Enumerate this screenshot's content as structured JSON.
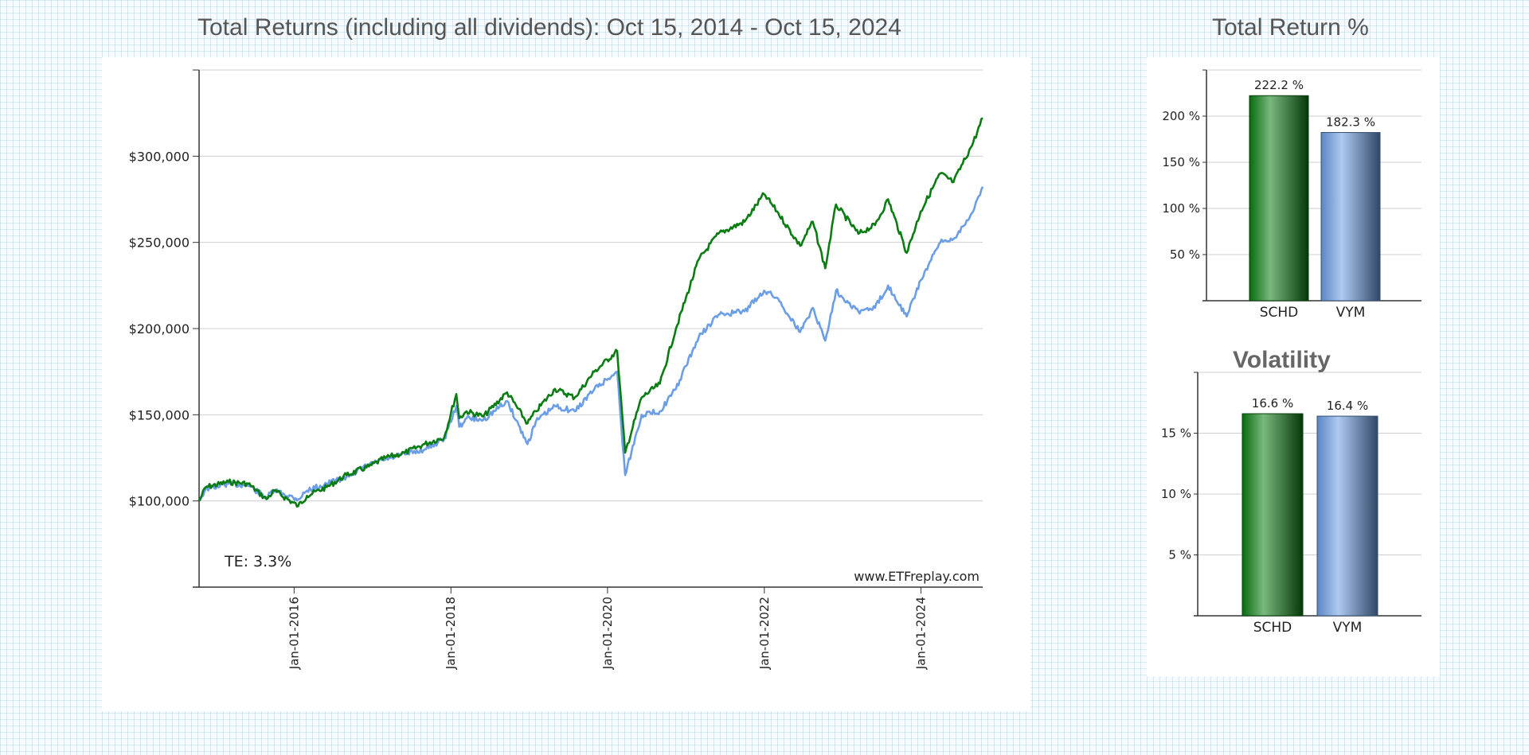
{
  "page": {
    "main_title": "Total Returns (including all dividends): Oct 15, 2014 - Oct 15, 2024",
    "return_title": "Total Return %",
    "volatility_title": "Volatility"
  },
  "colors": {
    "schd": "#0a7d12",
    "vym": "#6b9ee6",
    "grid": "#cfcfcf",
    "axis": "#333333"
  },
  "chart_data": [
    {
      "id": "growth",
      "type": "line",
      "title": "Total Returns (including all dividends): Oct 15, 2014 - Oct 15, 2024",
      "xlabel": "",
      "ylabel": "",
      "xlim": [
        "2014-10-15",
        "2024-10-15"
      ],
      "ylim": [
        50000,
        350000
      ],
      "y_ticks": [
        100000,
        150000,
        200000,
        250000,
        300000
      ],
      "y_tick_labels": [
        "$100,000",
        "$150,000",
        "$200,000",
        "$250,000",
        "$300,000"
      ],
      "x_ticks": [
        "2016-01-01",
        "2018-01-01",
        "2020-01-01",
        "2022-01-01",
        "2024-01-01"
      ],
      "x_tick_labels": [
        "Jan-01-2016",
        "Jan-01-2018",
        "Jan-01-2020",
        "Jan-01-2022",
        "Jan-01-2024"
      ],
      "grid": true,
      "annotation": "TE:  3.3%",
      "watermark": "www.ETFreplay.com",
      "series": [
        {
          "key": "schd",
          "color": "#0a7d12",
          "points": [
            [
              "2014-10-15",
              100000
            ],
            [
              "2014-11-15",
              108000
            ],
            [
              "2015-03-01",
              111000
            ],
            [
              "2015-06-01",
              110000
            ],
            [
              "2015-08-25",
              101000
            ],
            [
              "2015-10-01",
              106000
            ],
            [
              "2016-01-20",
              97000
            ],
            [
              "2016-03-01",
              103000
            ],
            [
              "2016-06-01",
              108000
            ],
            [
              "2016-09-01",
              115000
            ],
            [
              "2016-12-15",
              120000
            ],
            [
              "2017-03-01",
              125000
            ],
            [
              "2017-06-01",
              128000
            ],
            [
              "2017-09-01",
              133000
            ],
            [
              "2017-12-01",
              137000
            ],
            [
              "2018-01-26",
              162000
            ],
            [
              "2018-02-09",
              148000
            ],
            [
              "2018-03-15",
              152000
            ],
            [
              "2018-06-01",
              149000
            ],
            [
              "2018-09-20",
              163000
            ],
            [
              "2018-12-24",
              145000
            ],
            [
              "2019-02-01",
              152000
            ],
            [
              "2019-05-01",
              165000
            ],
            [
              "2019-08-01",
              160000
            ],
            [
              "2019-11-01",
              175000
            ],
            [
              "2020-02-15",
              187000
            ],
            [
              "2020-03-23",
              128000
            ],
            [
              "2020-06-08",
              160000
            ],
            [
              "2020-09-01",
              168000
            ],
            [
              "2020-11-15",
              200000
            ],
            [
              "2021-03-01",
              240000
            ],
            [
              "2021-06-01",
              255000
            ],
            [
              "2021-10-01",
              262000
            ],
            [
              "2021-12-31",
              278000
            ],
            [
              "2022-03-01",
              268000
            ],
            [
              "2022-06-17",
              248000
            ],
            [
              "2022-08-15",
              262000
            ],
            [
              "2022-10-12",
              235000
            ],
            [
              "2022-12-01",
              272000
            ],
            [
              "2023-03-15",
              255000
            ],
            [
              "2023-06-01",
              260000
            ],
            [
              "2023-08-01",
              275000
            ],
            [
              "2023-10-27",
              244000
            ],
            [
              "2023-12-31",
              268000
            ],
            [
              "2024-03-31",
              290000
            ],
            [
              "2024-06-01",
              285000
            ],
            [
              "2024-09-01",
              308000
            ],
            [
              "2024-10-15",
              322200
            ]
          ]
        },
        {
          "key": "vym",
          "color": "#6b9ee6",
          "points": [
            [
              "2014-10-15",
              100000
            ],
            [
              "2014-11-15",
              107000
            ],
            [
              "2015-03-01",
              110000
            ],
            [
              "2015-06-01",
              109000
            ],
            [
              "2015-08-25",
              102000
            ],
            [
              "2015-10-01",
              106000
            ],
            [
              "2016-01-20",
              101000
            ],
            [
              "2016-03-01",
              106000
            ],
            [
              "2016-06-01",
              110000
            ],
            [
              "2016-09-01",
              114000
            ],
            [
              "2016-12-15",
              121000
            ],
            [
              "2017-03-01",
              124000
            ],
            [
              "2017-06-01",
              127000
            ],
            [
              "2017-09-01",
              130000
            ],
            [
              "2017-12-01",
              136000
            ],
            [
              "2018-01-26",
              155000
            ],
            [
              "2018-02-09",
              143000
            ],
            [
              "2018-03-15",
              148000
            ],
            [
              "2018-06-01",
              147000
            ],
            [
              "2018-09-20",
              158000
            ],
            [
              "2018-12-24",
              133000
            ],
            [
              "2019-02-01",
              146000
            ],
            [
              "2019-05-01",
              155000
            ],
            [
              "2019-08-01",
              152000
            ],
            [
              "2019-11-01",
              165000
            ],
            [
              "2020-02-15",
              175000
            ],
            [
              "2020-03-23",
              115000
            ],
            [
              "2020-06-08",
              150000
            ],
            [
              "2020-09-01",
              152000
            ],
            [
              "2020-11-15",
              165000
            ],
            [
              "2021-03-01",
              195000
            ],
            [
              "2021-06-01",
              208000
            ],
            [
              "2021-10-01",
              210000
            ],
            [
              "2021-12-31",
              222000
            ],
            [
              "2022-03-01",
              218000
            ],
            [
              "2022-06-17",
              198000
            ],
            [
              "2022-08-15",
              212000
            ],
            [
              "2022-10-12",
              193000
            ],
            [
              "2022-12-01",
              222000
            ],
            [
              "2023-03-15",
              210000
            ],
            [
              "2023-06-01",
              212000
            ],
            [
              "2023-08-01",
              225000
            ],
            [
              "2023-10-27",
              207000
            ],
            [
              "2023-12-31",
              228000
            ],
            [
              "2024-03-31",
              250000
            ],
            [
              "2024-06-01",
              252000
            ],
            [
              "2024-09-01",
              268000
            ],
            [
              "2024-10-15",
              282300
            ]
          ]
        }
      ]
    },
    {
      "id": "total-return",
      "type": "bar",
      "title": "Total Return %",
      "categories": [
        "SCHD",
        "VYM"
      ],
      "values": [
        222.2,
        182.3
      ],
      "value_labels": [
        "222.2 %",
        "182.3 %"
      ],
      "ylim": [
        0,
        250
      ],
      "y_ticks": [
        50,
        100,
        150,
        200
      ],
      "y_tick_labels": [
        "50 %",
        "100 %",
        "150 %",
        "200 %"
      ],
      "grid": true
    },
    {
      "id": "volatility",
      "type": "bar",
      "title": "Volatility",
      "categories": [
        "SCHD",
        "VYM"
      ],
      "values": [
        16.6,
        16.4
      ],
      "value_labels": [
        "16.6 %",
        "16.4 %"
      ],
      "ylim": [
        0,
        20
      ],
      "y_ticks": [
        5,
        10,
        15
      ],
      "y_tick_labels": [
        "5 %",
        "10 %",
        "15 %"
      ],
      "grid": true
    }
  ]
}
